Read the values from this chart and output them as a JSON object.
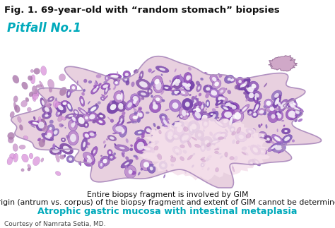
{
  "title": "Fig. 1. 69-year-old with “random stomach” biopsies",
  "pitfall_label": "Pitfall No.1",
  "pitfall_color": "#00AABB",
  "line1": "Entire biopsy fragment is involved by GIM",
  "line2": "Origin (antrum vs. corpus) of the biopsy fragment and extent of GIM cannot be determined",
  "line3": "Atrophic gastric mucosa with intestinal metaplasia",
  "line3_color": "#00AABB",
  "courtesy": "Courtesy of Namrata Setia, MD.",
  "bg_color": "#ffffff",
  "title_fontsize": 9.5,
  "pitfall_fontsize": 12,
  "body_fontsize": 7.8,
  "line3_fontsize": 9.2,
  "courtesy_fontsize": 6.5
}
